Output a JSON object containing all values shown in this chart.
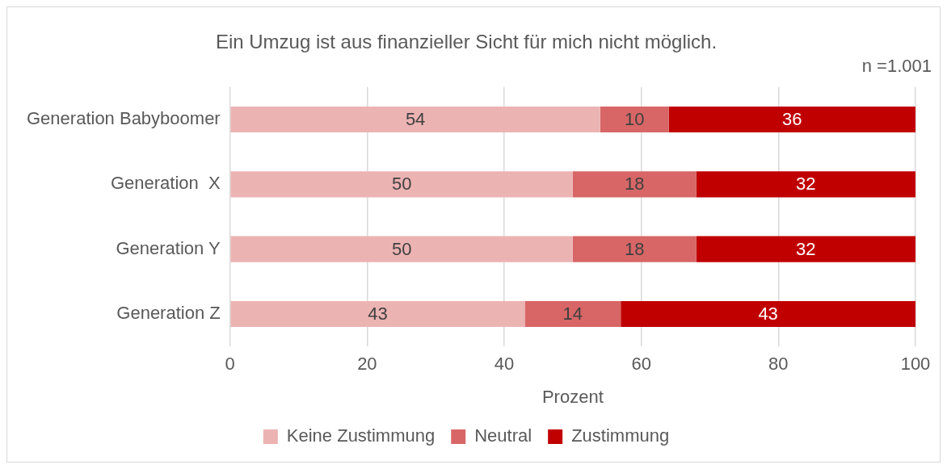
{
  "chart_data": {
    "type": "bar",
    "orientation": "horizontal",
    "stacked": true,
    "title": "Ein Umzug ist aus finanzieller Sicht für mich nicht möglich.",
    "xlabel": "Prozent",
    "annotations": [
      "n =1.001"
    ],
    "categories": [
      "Generation Babyboomer",
      "Generation  X",
      "Generation Y",
      "Generation Z"
    ],
    "series": [
      {
        "name": "Keine Zustimmung",
        "color": "#ecb3b3",
        "values": [
          54,
          50,
          50,
          43
        ]
      },
      {
        "name": "Neutral",
        "color": "#d86666",
        "values": [
          10,
          18,
          18,
          14
        ]
      },
      {
        "name": "Zustimmung",
        "color": "#c00000",
        "values": [
          36,
          32,
          32,
          43
        ]
      }
    ],
    "xlim": [
      0,
      100
    ],
    "xticks": [
      0,
      20,
      40,
      60,
      80,
      100
    ],
    "grid": "x",
    "legend": "bottom",
    "data_labels": true
  }
}
